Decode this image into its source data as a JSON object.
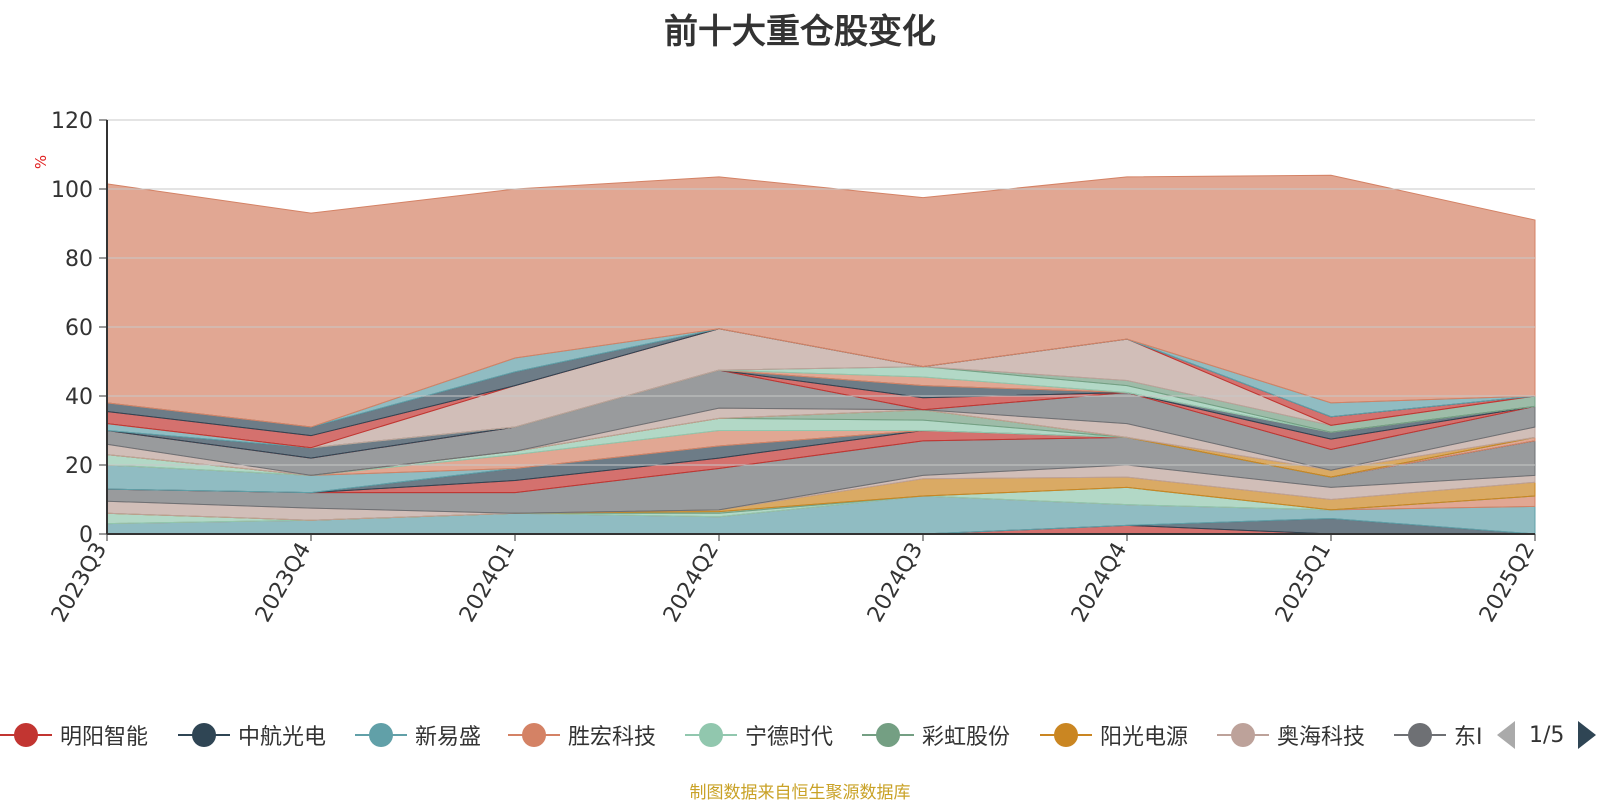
{
  "title": "前十大重仓股变化",
  "footer": "制图数据来自恒生聚源数据库",
  "legend": {
    "items": [
      {
        "name": "明阳智能",
        "color": "#c23531"
      },
      {
        "name": "中航光电",
        "color": "#2f4554"
      },
      {
        "name": "新易盛",
        "color": "#61a0a8"
      },
      {
        "name": "胜宏科技",
        "color": "#d48265"
      },
      {
        "name": "宁德时代",
        "color": "#91c7ae"
      },
      {
        "name": "彩虹股份",
        "color": "#749f83"
      },
      {
        "name": "阳光电源",
        "color": "#ca8622"
      },
      {
        "name": "奥海科技",
        "color": "#bda29a"
      },
      {
        "name": "东I",
        "color": "#6e7074"
      }
    ],
    "page": "1/5"
  },
  "chart_data": {
    "type": "area",
    "title": "前十大重仓股变化",
    "ylabel": "%",
    "ylim": [
      0,
      120
    ],
    "yticks": [
      0,
      20,
      40,
      60,
      80,
      100,
      120
    ],
    "grid": true,
    "stacked": true,
    "legend_position": "bottom",
    "categories": [
      "2023Q3",
      "2023Q4",
      "2024Q1",
      "2024Q2",
      "2024Q3",
      "2024Q4",
      "2025Q1",
      "2025Q2"
    ],
    "series": [
      {
        "name": "明阳智能",
        "color": "#c23531",
        "values": [
          0,
          0,
          0,
          0,
          0,
          2.5,
          0,
          0
        ]
      },
      {
        "name": "中航光电",
        "color": "#2f4554",
        "values": [
          0,
          0,
          0,
          0,
          0,
          0,
          4.5,
          0
        ]
      },
      {
        "name": "新易盛",
        "color": "#61a0a8",
        "values": [
          3,
          4,
          6,
          5,
          11,
          6,
          2.5,
          8
        ]
      },
      {
        "name": "胜宏科技",
        "color": "#d48265",
        "values": [
          0,
          0,
          0,
          0,
          0,
          0,
          0,
          3
        ]
      },
      {
        "name": "宁德时代",
        "color": "#91c7ae",
        "values": [
          3,
          0,
          0,
          1,
          0,
          5,
          0,
          0
        ]
      },
      {
        "name": "彩虹股份",
        "color": "#749f83",
        "values": [
          0,
          0,
          0,
          0.5,
          0,
          0,
          0,
          0
        ]
      },
      {
        "name": "阳光电源",
        "color": "#ca8622",
        "values": [
          0,
          0,
          0,
          0.5,
          5,
          3,
          3,
          4
        ]
      },
      {
        "name": "奥海科技",
        "color": "#bda29a",
        "values": [
          3.5,
          3.5,
          0,
          0,
          1,
          3.5,
          3.5,
          2
        ]
      },
      {
        "name": "东I",
        "color": "#6e7074",
        "values": [
          3.5,
          4.5,
          6,
          12,
          10,
          8,
          3,
          10
        ]
      },
      {
        "name": "",
        "color": "#c23531",
        "values": [
          0,
          0,
          3.5,
          3,
          3,
          0,
          0,
          0
        ]
      },
      {
        "name": "",
        "color": "#2f4554",
        "values": [
          0,
          0,
          3.5,
          3.5,
          0,
          0,
          0,
          0
        ]
      },
      {
        "name": "",
        "color": "#61a0a8",
        "values": [
          7,
          5,
          0,
          0,
          0,
          0,
          0,
          0
        ]
      },
      {
        "name": "",
        "color": "#d48265",
        "values": [
          0,
          0,
          4,
          4.5,
          0,
          0,
          0,
          1
        ]
      },
      {
        "name": "",
        "color": "#91c7ae",
        "values": [
          3,
          0,
          1,
          3.5,
          3,
          0,
          0,
          0
        ]
      },
      {
        "name": "",
        "color": "#749f83",
        "values": [
          0,
          0,
          0,
          0,
          3,
          0,
          0,
          0
        ]
      },
      {
        "name": "",
        "color": "#ca8622",
        "values": [
          0,
          0,
          0,
          0,
          0,
          0,
          2,
          0
        ]
      },
      {
        "name": "",
        "color": "#bda29a",
        "values": [
          3,
          0,
          0,
          3,
          0,
          4,
          0,
          3
        ]
      },
      {
        "name": "",
        "color": "#6e7074",
        "values": [
          4,
          5,
          7,
          11,
          0,
          9,
          6,
          6
        ]
      },
      {
        "name": "",
        "color": "#c23531",
        "values": [
          0,
          0,
          0,
          0,
          3.5,
          0,
          3,
          0
        ]
      },
      {
        "name": "",
        "color": "#2f4554",
        "values": [
          0,
          3,
          0,
          0,
          3.5,
          0,
          2,
          0
        ]
      },
      {
        "name": "",
        "color": "#61a0a8",
        "values": [
          2,
          0,
          0,
          0,
          0,
          0,
          0,
          0
        ]
      },
      {
        "name": "",
        "color": "#d48265",
        "values": [
          0,
          0,
          0,
          0,
          2.5,
          0,
          0,
          0
        ]
      },
      {
        "name": "",
        "color": "#91c7ae",
        "values": [
          0,
          0,
          0,
          0,
          3,
          2,
          0,
          0
        ]
      },
      {
        "name": "",
        "color": "#749f83",
        "values": [
          0,
          0,
          0,
          0,
          0,
          1.5,
          2,
          3
        ]
      },
      {
        "name": "",
        "color": "#bda29a",
        "values": [
          0,
          0,
          12,
          12,
          0,
          12,
          0,
          0
        ]
      },
      {
        "name": "",
        "color": "#c23531",
        "values": [
          3.5,
          3.5,
          0,
          0,
          0,
          0,
          2.5,
          0
        ]
      },
      {
        "name": "",
        "color": "#2f4554",
        "values": [
          2.5,
          2.5,
          4,
          0,
          0,
          0,
          0,
          0
        ]
      },
      {
        "name": "",
        "color": "#61a0a8",
        "values": [
          0,
          0,
          4,
          0,
          0,
          0,
          4,
          0
        ]
      },
      {
        "name": "",
        "color": "#d48265",
        "values": [
          63.5,
          62,
          49,
          44,
          49,
          47,
          66,
          51
        ]
      }
    ]
  }
}
